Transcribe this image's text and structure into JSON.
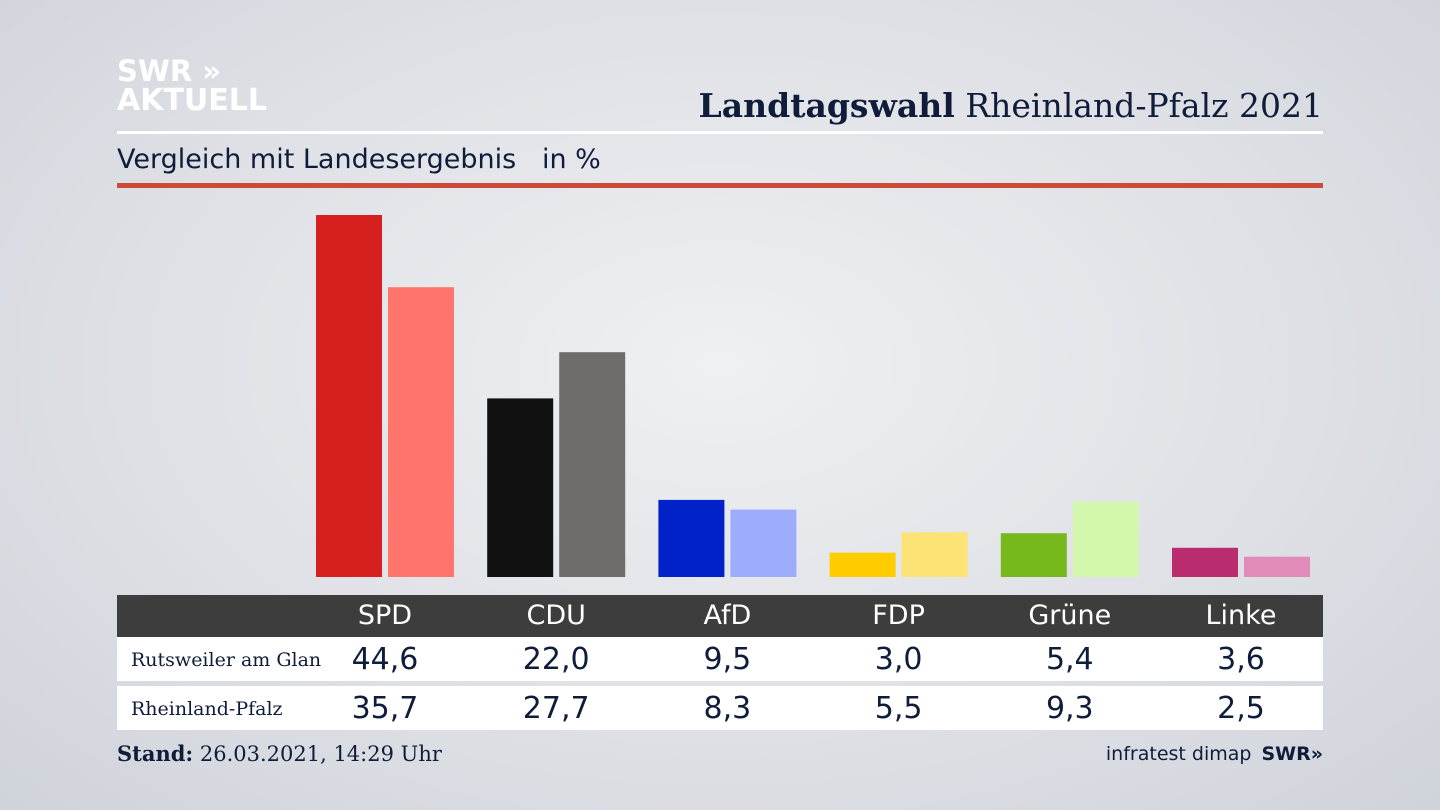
{
  "brand": {
    "logo_line1": "SWR »",
    "logo_line2": "AKTUELL",
    "footer_logo": "SWR»"
  },
  "header": {
    "title_bold": "Landtagswahl",
    "title_rest": " Rheinland-Pfalz 2021"
  },
  "subtitle": "Vergleich mit Landesergebnis   in %",
  "colors": {
    "accent_rule": "#cd4a3b",
    "table_header": "#3d3d3d"
  },
  "chart_data": {
    "type": "bar",
    "categories": [
      "SPD",
      "CDU",
      "AfD",
      "FDP",
      "Grüne",
      "Linke"
    ],
    "series": [
      {
        "name": "Rutsweiler am Glan",
        "values": [
          "44,6",
          "22,0",
          "9,5",
          "3,0",
          "5,4",
          "3,6"
        ],
        "colors": [
          "#d61f1f",
          "#111111",
          "#0022c8",
          "#ffcc00",
          "#77b81d",
          "#b92d6e"
        ]
      },
      {
        "name": "Rheinland-Pfalz",
        "values": [
          "35,7",
          "27,7",
          "8,3",
          "5,5",
          "9,3",
          "2,5"
        ],
        "colors": [
          "#ff756c",
          "#6f6d6b",
          "#9eacfe",
          "#fde375",
          "#d4f7ae",
          "#e08bb8"
        ]
      }
    ]
  },
  "footer": {
    "stand_label": "Stand:",
    "stand_value": " 26.03.2021, 14:29 Uhr",
    "source": "infratest dimap"
  }
}
